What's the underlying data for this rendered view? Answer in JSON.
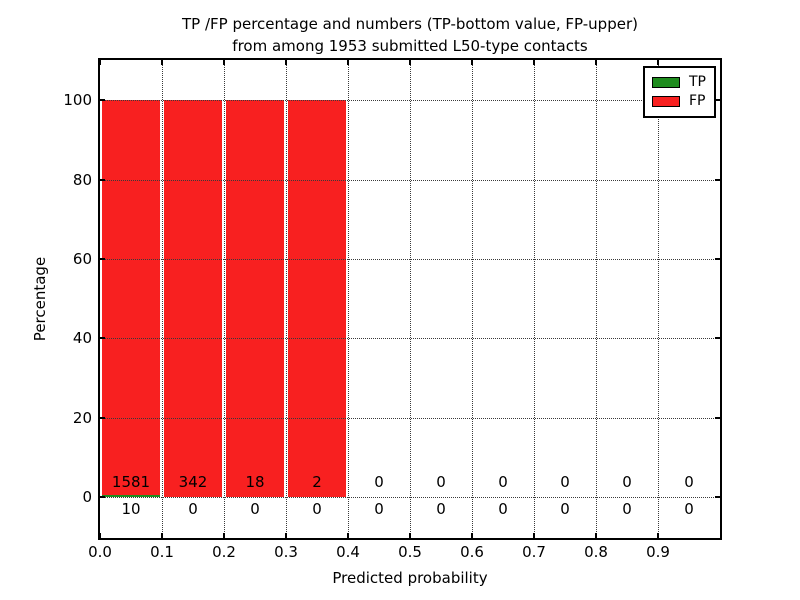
{
  "title": {
    "line1": "TP /FP percentage and numbers (TP-bottom value, FP-upper)",
    "line2": "from among 1953 submitted L50-type contacts"
  },
  "chart_data": {
    "type": "bar",
    "stacked": true,
    "title": "TP /FP percentage and numbers (TP-bottom value, FP-upper) from among 1953 submitted L50-type contacts",
    "xlabel": "Predicted probability",
    "ylabel": "Percentage",
    "xlim": [
      0.0,
      1.0
    ],
    "ylim": [
      -10.3,
      110.2
    ],
    "xticks": [
      "0.0",
      "0.1",
      "0.2",
      "0.3",
      "0.4",
      "0.5",
      "0.6",
      "0.7",
      "0.8",
      "0.9"
    ],
    "yticks": [
      0,
      20,
      40,
      60,
      80,
      100
    ],
    "grid": "dotted, both axes, drawn above bars",
    "bin_width": 0.1,
    "bin_starts": [
      0.0,
      0.1,
      0.2,
      0.3,
      0.4,
      0.5,
      0.6,
      0.7,
      0.8,
      0.9
    ],
    "total_contacts": 1953,
    "series": [
      {
        "name": "TP",
        "color": "#1e8c1e",
        "counts": [
          10,
          0,
          0,
          0,
          0,
          0,
          0,
          0,
          0,
          0
        ],
        "percent": [
          0.63,
          0,
          0,
          0,
          0,
          0,
          0,
          0,
          0,
          0
        ]
      },
      {
        "name": "FP",
        "color": "#f82020",
        "counts": [
          1581,
          342,
          18,
          2,
          0,
          0,
          0,
          0,
          0,
          0
        ],
        "percent": [
          99.37,
          100,
          100,
          100,
          0,
          0,
          0,
          0,
          0,
          0
        ]
      }
    ],
    "legend": {
      "position": "upper right",
      "entries": [
        "TP",
        "FP"
      ]
    }
  }
}
